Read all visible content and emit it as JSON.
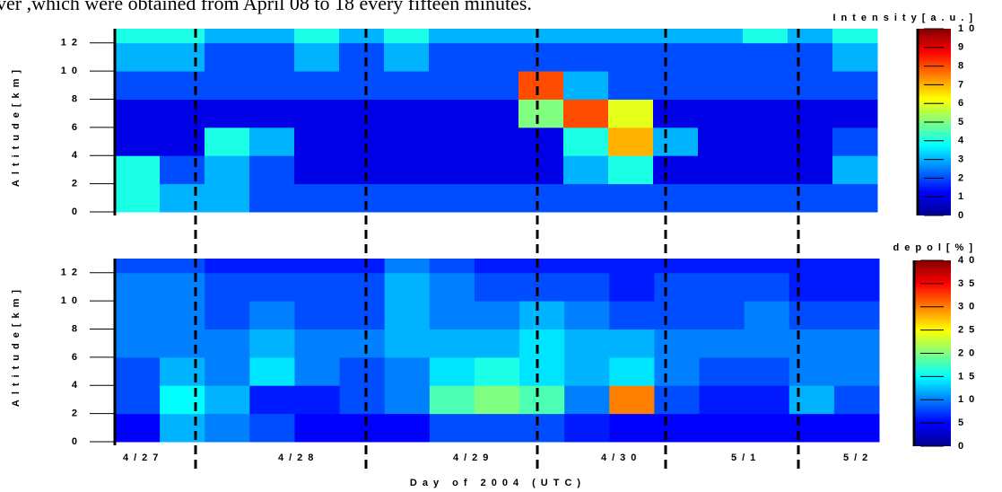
{
  "caption": "ver ,which were obtained from April 08 to 18 every fifteen minutes.",
  "chart_data": [
    {
      "type": "heatmap",
      "y_label": "Altitude[km]",
      "colorbar_label": "Intensity[a.u.]",
      "ylim": [
        0,
        13
      ],
      "yticks": [
        0,
        2,
        4,
        6,
        8,
        10,
        12
      ],
      "y_edges": [
        0,
        2,
        4,
        6,
        8,
        10,
        12,
        13
      ],
      "clim": [
        0,
        10
      ],
      "cticks": [
        0,
        1,
        2,
        3,
        4,
        5,
        6,
        7,
        8,
        9,
        10
      ],
      "colormap": "jet",
      "z": [
        [
          4,
          3,
          3,
          2,
          2,
          2,
          2,
          2,
          2,
          2,
          2,
          2,
          2,
          2,
          2,
          2,
          2
        ],
        [
          4,
          2,
          3,
          2,
          1,
          1,
          1,
          1,
          1,
          1,
          3,
          4,
          1,
          1,
          1,
          1,
          3
        ],
        [
          1,
          1,
          4,
          3,
          1,
          1,
          1,
          1,
          1,
          1,
          4,
          7,
          3,
          1,
          1,
          1,
          2
        ],
        [
          1,
          1,
          1,
          1,
          1,
          1,
          1,
          1,
          1,
          5,
          8,
          6,
          1,
          1,
          1,
          1,
          1
        ],
        [
          2,
          2,
          2,
          2,
          2,
          2,
          2,
          2,
          2,
          8,
          3,
          2,
          2,
          2,
          2,
          2,
          2
        ],
        [
          3,
          3,
          2,
          2,
          3,
          2,
          3,
          2,
          2,
          2,
          2,
          2,
          2,
          2,
          2,
          2,
          3
        ],
        [
          4,
          4,
          3,
          3,
          4,
          3,
          4,
          3,
          3,
          3,
          3,
          3,
          3,
          3,
          4,
          3,
          4
        ]
      ]
    },
    {
      "type": "heatmap",
      "y_label": "Altitude[km]",
      "colorbar_label": "depol[%]",
      "ylim": [
        0,
        13
      ],
      "yticks": [
        0,
        2,
        4,
        6,
        8,
        10,
        12
      ],
      "y_edges": [
        0,
        2,
        4,
        6,
        8,
        10,
        12,
        13
      ],
      "clim": [
        0,
        40
      ],
      "cticks": [
        0,
        5,
        10,
        15,
        20,
        25,
        30,
        35,
        40
      ],
      "colormap": "jet",
      "x_label": "Day of 2004 (UTC)",
      "categories": [
        "4/27",
        "4/28",
        "4/29",
        "4/30",
        "5/1",
        "5/2"
      ],
      "z": [
        [
          5,
          12,
          10,
          8,
          5,
          5,
          5,
          8,
          8,
          8,
          6,
          5,
          5,
          5,
          5,
          5,
          5
        ],
        [
          8,
          15,
          12,
          6,
          6,
          8,
          10,
          18,
          20,
          18,
          10,
          30,
          8,
          6,
          6,
          12,
          8
        ],
        [
          8,
          12,
          10,
          14,
          10,
          8,
          10,
          14,
          16,
          14,
          12,
          14,
          10,
          8,
          8,
          10,
          10
        ],
        [
          10,
          10,
          10,
          12,
          10,
          10,
          12,
          12,
          12,
          14,
          12,
          12,
          10,
          10,
          10,
          10,
          10
        ],
        [
          10,
          10,
          8,
          10,
          8,
          8,
          12,
          10,
          10,
          12,
          10,
          8,
          8,
          8,
          10,
          8,
          8
        ],
        [
          10,
          10,
          8,
          8,
          8,
          8,
          12,
          10,
          8,
          8,
          8,
          6,
          8,
          8,
          8,
          6,
          6
        ],
        [
          8,
          8,
          6,
          6,
          6,
          6,
          10,
          8,
          6,
          6,
          6,
          6,
          6,
          6,
          6,
          6,
          6
        ]
      ]
    }
  ]
}
